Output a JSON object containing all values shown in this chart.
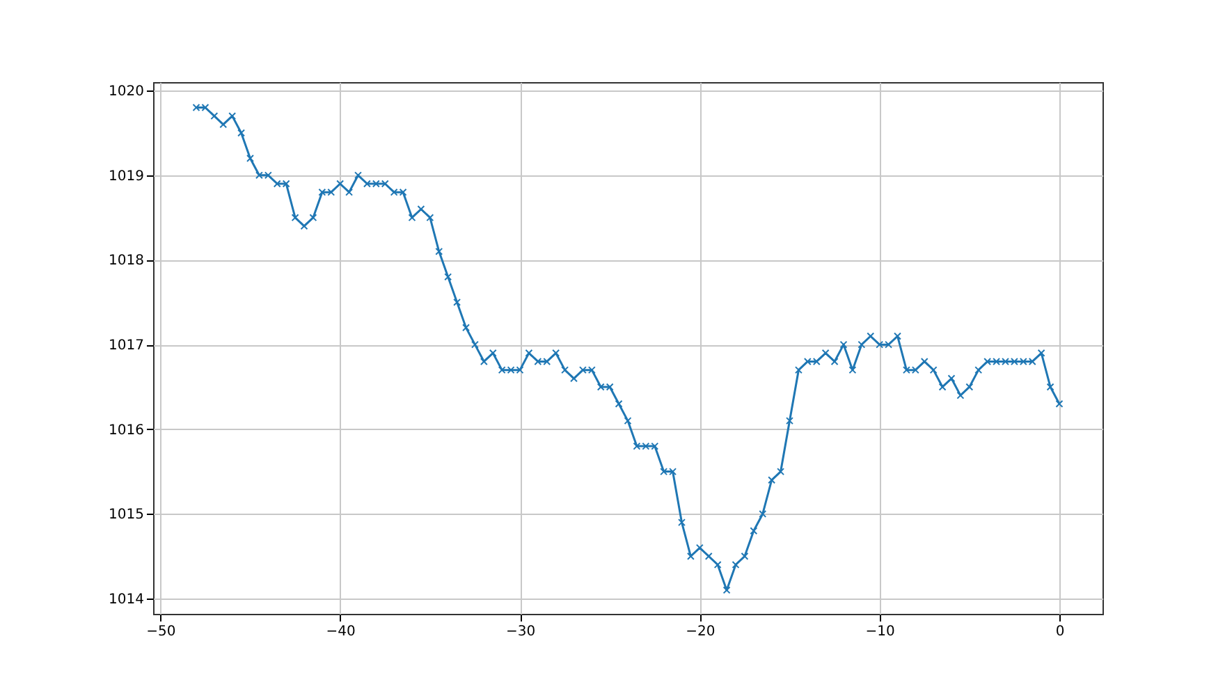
{
  "chart_data": {
    "type": "line",
    "marker": "cross",
    "grid": true,
    "xlim": [
      -50.4,
      2.4
    ],
    "xticks": [
      -50,
      -40,
      -30,
      -20,
      -10,
      0
    ],
    "ylim": [
      1013.82,
      1020.1
    ],
    "yticks": [
      1014,
      1015,
      1016,
      1017,
      1018,
      1019,
      1020
    ],
    "x": [
      -48,
      -47.5,
      -47,
      -46.5,
      -46,
      -45.5,
      -45,
      -44.5,
      -44,
      -43.5,
      -43,
      -42.5,
      -42,
      -41.5,
      -41,
      -40.5,
      -40,
      -39.5,
      -39,
      -38.5,
      -38,
      -37.5,
      -37,
      -36.5,
      -36,
      -35.5,
      -35,
      -34.5,
      -34,
      -33.5,
      -33,
      -32.5,
      -32,
      -31.5,
      -31,
      -30.5,
      -30,
      -29.5,
      -29,
      -28.5,
      -28,
      -27.5,
      -27,
      -26.5,
      -26,
      -25.5,
      -25,
      -24.5,
      -24,
      -23.5,
      -23,
      -22.5,
      -22,
      -21.5,
      -21,
      -20.5,
      -20,
      -19.5,
      -19,
      -18.5,
      -18,
      -17.5,
      -17,
      -16.5,
      -16,
      -15.5,
      -15,
      -14.5,
      -14,
      -13.5,
      -13,
      -12.5,
      -12,
      -11.5,
      -11,
      -10.5,
      -10,
      -9.5,
      -9,
      -8.5,
      -8,
      -7.5,
      -7,
      -6.5,
      -6,
      -5.5,
      -5,
      -4.5,
      -4,
      -3.5,
      -3,
      -2.5,
      -2,
      -1.5,
      -1,
      -0.5,
      0
    ],
    "series": [
      {
        "color": "#1f77b4",
        "values": [
          1019.8,
          1019.8,
          1019.7,
          1019.6,
          1019.7,
          1019.5,
          1019.2,
          1019.0,
          1019.0,
          1018.9,
          1018.9,
          1018.5,
          1018.4,
          1018.5,
          1018.8,
          1018.8,
          1018.9,
          1018.8,
          1019.0,
          1018.9,
          1018.9,
          1018.9,
          1018.8,
          1018.8,
          1018.5,
          1018.6,
          1018.5,
          1018.1,
          1017.8,
          1017.5,
          1017.2,
          1017.0,
          1016.8,
          1016.9,
          1016.7,
          1016.7,
          1016.7,
          1016.9,
          1016.8,
          1016.8,
          1016.9,
          1016.7,
          1016.6,
          1016.7,
          1016.7,
          1016.5,
          1016.5,
          1016.3,
          1016.1,
          1015.8,
          1015.8,
          1015.8,
          1015.5,
          1015.5,
          1014.9,
          1014.5,
          1014.6,
          1014.5,
          1014.4,
          1014.1,
          1014.4,
          1014.5,
          1014.8,
          1015.0,
          1015.4,
          1015.5,
          1016.1,
          1016.7,
          1016.8,
          1016.8,
          1016.9,
          1016.8,
          1017.0,
          1016.7,
          1017.0,
          1017.1,
          1017.0,
          1017.0,
          1017.1,
          1016.7,
          1016.7,
          1016.8,
          1016.7,
          1016.5,
          1016.6,
          1016.4,
          1016.5,
          1016.7,
          1016.8,
          1016.8,
          1016.8,
          1016.8,
          1016.8,
          1016.8,
          1016.9,
          1016.5,
          1016.3
        ]
      }
    ]
  }
}
